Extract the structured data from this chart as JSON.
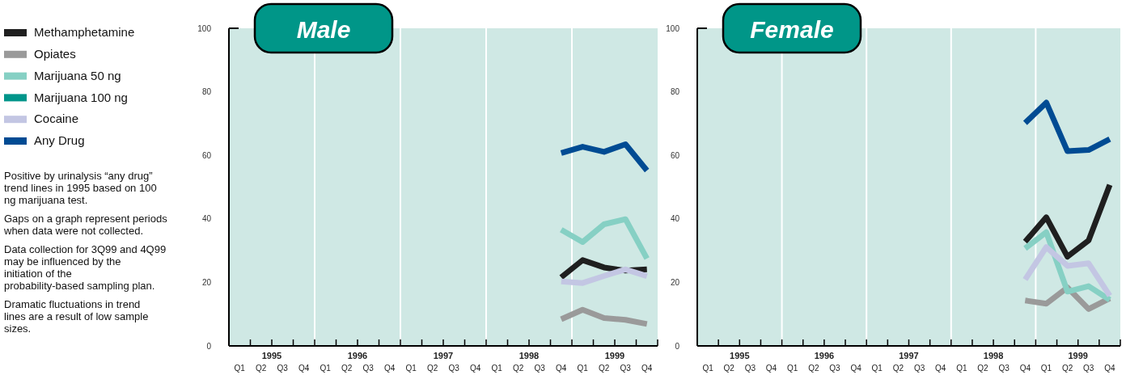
{
  "chart_data": [
    {
      "type": "line",
      "title": "Male",
      "categories": [
        "Q1",
        "Q2",
        "Q3",
        "Q4",
        "Q1",
        "Q2",
        "Q3",
        "Q4",
        "Q1",
        "Q2",
        "Q3",
        "Q4",
        "Q1",
        "Q2",
        "Q3",
        "Q4",
        "Q1",
        "Q2",
        "Q3",
        "Q4"
      ],
      "annotations": [
        "1995",
        "1996",
        "1997",
        "1998",
        "1999"
      ],
      "ylim": [
        0,
        100
      ],
      "yticks": [
        0,
        20,
        40,
        60,
        80,
        100
      ],
      "legend": "left",
      "line_style": "solid",
      "series": [
        {
          "name": "Methamphetamine",
          "color": "#1f1f1f",
          "values": [
            null,
            null,
            null,
            null,
            null,
            null,
            null,
            null,
            null,
            null,
            null,
            null,
            null,
            null,
            null,
            21.6,
            27,
            24.7,
            23.7,
            24.1
          ]
        },
        {
          "name": "Opiates",
          "color": "#9a9a9a",
          "values": [
            null,
            null,
            null,
            null,
            null,
            null,
            null,
            null,
            null,
            null,
            null,
            null,
            null,
            null,
            null,
            8.4,
            11.4,
            8.8,
            8.2,
            6.9
          ]
        },
        {
          "name": "Marijuana 50 ng",
          "color": "#86d0c4",
          "values": [
            null,
            null,
            null,
            null,
            null,
            null,
            null,
            null,
            null,
            null,
            null,
            null,
            null,
            null,
            null,
            36.6,
            32.7,
            38.3,
            39.9,
            27.5
          ]
        },
        {
          "name": "Marijuana 100 ng",
          "color": "#00958a",
          "values": [
            null,
            null,
            null,
            null,
            null,
            null,
            null,
            null,
            null,
            null,
            null,
            null,
            null,
            null,
            null,
            null,
            null,
            null,
            null,
            null
          ]
        },
        {
          "name": "Cocaine",
          "color": "#c3c6e3",
          "values": [
            null,
            null,
            null,
            null,
            null,
            null,
            null,
            null,
            null,
            null,
            null,
            null,
            null,
            null,
            null,
            20.3,
            19.8,
            22,
            24.1,
            22
          ]
        },
        {
          "name": "Any Drug",
          "color": "#004b93",
          "values": [
            null,
            null,
            null,
            null,
            null,
            null,
            null,
            null,
            null,
            null,
            null,
            null,
            null,
            null,
            null,
            60.7,
            62.7,
            61.1,
            63.5,
            55.2
          ]
        }
      ]
    },
    {
      "type": "line",
      "title": "Female",
      "categories": [
        "Q1",
        "Q2",
        "Q3",
        "Q4",
        "Q1",
        "Q2",
        "Q3",
        "Q4",
        "Q1",
        "Q2",
        "Q3",
        "Q4",
        "Q1",
        "Q2",
        "Q3",
        "Q4",
        "Q1",
        "Q2",
        "Q3",
        "Q4"
      ],
      "annotations": [
        "1995",
        "1996",
        "1997",
        "1998",
        "1999"
      ],
      "ylim": [
        0,
        100
      ],
      "yticks": [
        0,
        20,
        40,
        60,
        80,
        100
      ],
      "line_style": "solid",
      "series": [
        {
          "color": "#1f1f1f",
          "values": [
            null,
            null,
            null,
            null,
            null,
            null,
            null,
            null,
            null,
            null,
            null,
            null,
            null,
            null,
            null,
            32.8,
            40.5,
            28.1,
            33.2,
            50.7
          ]
        },
        {
          "color": "#9a9a9a",
          "values": [
            null,
            null,
            null,
            null,
            null,
            null,
            null,
            null,
            null,
            null,
            null,
            null,
            null,
            null,
            null,
            14.3,
            13.3,
            18.4,
            11.6,
            15
          ]
        },
        {
          "color": "#86d0c4",
          "values": [
            null,
            null,
            null,
            null,
            null,
            null,
            null,
            null,
            null,
            null,
            null,
            null,
            null,
            null,
            null,
            30.7,
            35.8,
            17.1,
            18.8,
            14.5
          ]
        },
        {
          "color": "#00958a",
          "values": [
            null,
            null,
            null,
            null,
            null,
            null,
            null,
            null,
            null,
            null,
            null,
            null,
            null,
            null,
            null,
            null,
            null,
            null,
            null,
            null
          ]
        },
        {
          "color": "#c3c6e3",
          "values": [
            null,
            null,
            null,
            null,
            null,
            null,
            null,
            null,
            null,
            null,
            null,
            null,
            null,
            null,
            null,
            20.9,
            31.1,
            25.2,
            26,
            15.8
          ]
        },
        {
          "color": "#004b93",
          "values": [
            null,
            null,
            null,
            null,
            null,
            null,
            null,
            null,
            null,
            null,
            null,
            null,
            null,
            null,
            null,
            70.2,
            76.6,
            61.3,
            61.7,
            65.1
          ]
        }
      ]
    },
    {
      "type": "other",
      "annotations": [
        "Positive by urinalysis “any drug” trend lines in 1995 based on 100 ng marijuana test.",
        "Gaps on a graph represent periods when data were not collected.",
        "Data collection for 3Q99 and 4Q99 may be influenced by the initiation of the probability-based sampling plan.",
        "Dramatic fluctuations in trend lines are a result of low sample sizes."
      ]
    }
  ]
}
